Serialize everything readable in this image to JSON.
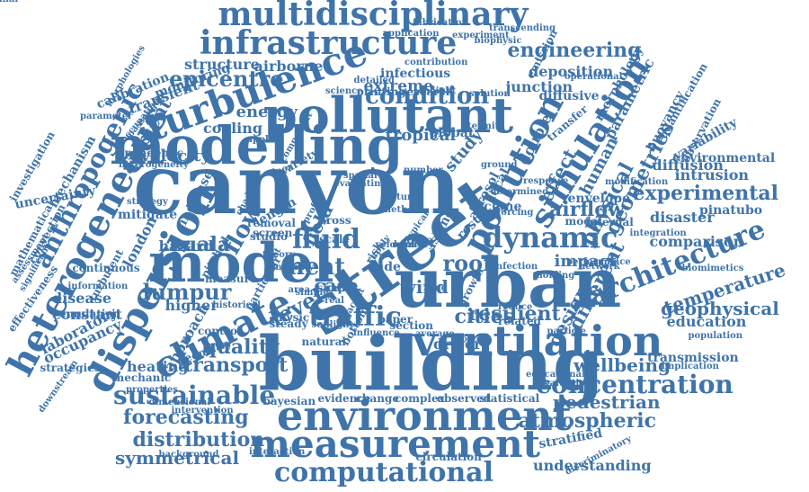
{
  "color": "#3f74aa",
  "words": [
    {
      "text": "canyon"
    },
    {
      "text": "street"
    },
    {
      "text": "building"
    },
    {
      "text": "urban"
    },
    {
      "text": "modelling"
    },
    {
      "text": "model"
    },
    {
      "text": "pollutant"
    },
    {
      "text": "environment"
    },
    {
      "text": "measurement"
    },
    {
      "text": "ventilation"
    },
    {
      "text": "computational"
    },
    {
      "text": "infrastructure"
    },
    {
      "text": "multidisciplinary"
    },
    {
      "text": "dispersion"
    },
    {
      "text": "heterogeneous"
    },
    {
      "text": "turbulence"
    },
    {
      "text": "climate"
    },
    {
      "text": "pollution"
    },
    {
      "text": "simulation"
    },
    {
      "text": "dynamic"
    },
    {
      "text": "concentration"
    },
    {
      "text": "sustainable"
    },
    {
      "text": "traffic"
    },
    {
      "text": "architecture"
    },
    {
      "text": "experimental"
    },
    {
      "text": "forecasting"
    },
    {
      "text": "distribution"
    },
    {
      "text": "atmospheric"
    },
    {
      "text": "engineering"
    },
    {
      "text": "condition"
    },
    {
      "text": "epicentre"
    },
    {
      "text": "anthropogenic"
    },
    {
      "text": "fluid"
    },
    {
      "text": "airflow"
    },
    {
      "text": "lumpur"
    },
    {
      "text": "kuala"
    },
    {
      "text": "quality"
    },
    {
      "text": "transport"
    },
    {
      "text": "temperature"
    },
    {
      "text": "geophysical"
    },
    {
      "text": "cities"
    },
    {
      "text": "resilient"
    },
    {
      "text": "geometries"
    },
    {
      "text": "physical"
    },
    {
      "text": "different"
    },
    {
      "text": "roof"
    },
    {
      "text": "heat"
    },
    {
      "text": "level"
    },
    {
      "text": "flow"
    },
    {
      "text": "wellbeing"
    },
    {
      "text": "symmetrical"
    },
    {
      "text": "pedestrian"
    },
    {
      "text": "understanding"
    },
    {
      "text": "extreme"
    },
    {
      "text": "airborne"
    },
    {
      "text": "structure"
    },
    {
      "text": "junction"
    },
    {
      "text": "deposition"
    },
    {
      "text": "energy"
    },
    {
      "text": "transient"
    },
    {
      "text": "ambient"
    },
    {
      "text": "cooling"
    },
    {
      "text": "velocity"
    },
    {
      "text": "tropical"
    },
    {
      "text": "study"
    },
    {
      "text": "double"
    },
    {
      "text": "effect"
    },
    {
      "text": "human"
    },
    {
      "text": "intrusion"
    },
    {
      "text": "diffusion"
    },
    {
      "text": "environmental"
    },
    {
      "text": "variability"
    },
    {
      "text": "buoyancy"
    },
    {
      "text": "parametric"
    },
    {
      "text": "pinatubo"
    },
    {
      "text": "disaster"
    },
    {
      "text": "comparison"
    },
    {
      "text": "education"
    },
    {
      "text": "design"
    },
    {
      "text": "impact"
    },
    {
      "text": "field"
    },
    {
      "text": "case"
    },
    {
      "text": "wind"
    },
    {
      "text": "london"
    },
    {
      "text": "hazard"
    },
    {
      "text": "laboratory"
    },
    {
      "text": "disease"
    },
    {
      "text": "constant"
    },
    {
      "text": "occupancy"
    },
    {
      "text": "heating"
    },
    {
      "text": "approach"
    },
    {
      "text": "higher"
    },
    {
      "text": "transmission"
    },
    {
      "text": "driver"
    },
    {
      "text": "infectious"
    },
    {
      "text": "calibration"
    },
    {
      "text": "monitoring"
    },
    {
      "text": "mechanism"
    },
    {
      "text": "uncertainty"
    },
    {
      "text": "investigation"
    },
    {
      "text": "convection"
    },
    {
      "text": "mathematical"
    },
    {
      "text": "turbulent"
    },
    {
      "text": "laminar"
    },
    {
      "text": "mitigate"
    },
    {
      "text": "increase"
    },
    {
      "text": "global"
    },
    {
      "text": "research"
    },
    {
      "text": "printing"
    },
    {
      "text": "science"
    },
    {
      "text": "detailed"
    },
    {
      "text": "fabrication"
    },
    {
      "text": "application"
    },
    {
      "text": "experiment"
    },
    {
      "text": "transcending"
    },
    {
      "text": "biophysic"
    },
    {
      "text": "emission"
    },
    {
      "text": "operational"
    },
    {
      "text": "morphology"
    },
    {
      "text": "quantification"
    },
    {
      "text": "observation"
    },
    {
      "text": "diffusive"
    },
    {
      "text": "transfer"
    },
    {
      "text": "island"
    },
    {
      "text": "result"
    },
    {
      "text": "aerosol"
    },
    {
      "text": "local"
    },
    {
      "text": "envelope"
    },
    {
      "text": "internal"
    },
    {
      "text": "modal"
    },
    {
      "text": "integration"
    },
    {
      "text": "population"
    },
    {
      "text": "implication"
    },
    {
      "text": "biomimetics"
    },
    {
      "text": "growth"
    },
    {
      "text": "related"
    },
    {
      "text": "reduce"
    },
    {
      "text": "particle"
    },
    {
      "text": "infection"
    },
    {
      "text": "holding"
    },
    {
      "text": "network"
    },
    {
      "text": "stratified"
    },
    {
      "text": "discriminatory"
    },
    {
      "text": "circulation"
    },
    {
      "text": "observed"
    },
    {
      "text": "statistical"
    },
    {
      "text": "complex"
    },
    {
      "text": "change"
    },
    {
      "text": "evidence"
    },
    {
      "text": "bayesian"
    },
    {
      "text": "natural"
    },
    {
      "text": "bottom"
    },
    {
      "text": "section"
    },
    {
      "text": "average"
    },
    {
      "text": "control"
    },
    {
      "text": "geometry"
    },
    {
      "text": "mechanic"
    },
    {
      "text": "properties"
    },
    {
      "text": "dimensional"
    },
    {
      "text": "intervention"
    },
    {
      "text": "background"
    },
    {
      "text": "interaction"
    },
    {
      "text": "strategies"
    },
    {
      "text": "downstream"
    },
    {
      "text": "emulation"
    },
    {
      "text": "information"
    },
    {
      "text": "continuous"
    },
    {
      "text": "effectiveness"
    },
    {
      "text": "assessment"
    },
    {
      "text": "significant"
    },
    {
      "text": "pandemic"
    },
    {
      "text": "heterogeneity"
    },
    {
      "text": "strategy"
    },
    {
      "text": "parameter"
    },
    {
      "text": "occupational"
    },
    {
      "text": "morphologies"
    },
    {
      "text": "passenger"
    },
    {
      "text": "removal"
    },
    {
      "text": "screen"
    },
    {
      "text": "length"
    },
    {
      "text": "measure"
    },
    {
      "text": "historical"
    },
    {
      "text": "particular"
    },
    {
      "text": "physic"
    },
    {
      "text": "steady"
    },
    {
      "text": "shape"
    },
    {
      "text": "simple"
    },
    {
      "text": "area"
    },
    {
      "text": "scale"
    },
    {
      "text": "side"
    },
    {
      "text": "risk"
    },
    {
      "text": "data"
    },
    {
      "text": "cross"
    },
    {
      "text": "paper"
    },
    {
      "text": "zone"
    },
    {
      "text": "cyclone"
    },
    {
      "text": "forcing"
    },
    {
      "text": "response"
    },
    {
      "text": "termite"
    },
    {
      "text": "ground"
    },
    {
      "text": "component"
    },
    {
      "text": "applied"
    },
    {
      "text": "pitched"
    },
    {
      "text": "theory"
    },
    {
      "text": "studio"
    },
    {
      "text": "chadwick"
    },
    {
      "text": "floor"
    },
    {
      "text": "variety"
    },
    {
      "text": "spatial"
    },
    {
      "text": "number"
    },
    {
      "text": "method"
    },
    {
      "text": "future"
    },
    {
      "text": "typical"
    },
    {
      "text": "profile"
    },
    {
      "text": "height"
    },
    {
      "text": "solution"
    },
    {
      "text": "contribution"
    },
    {
      "text": "educational"
    },
    {
      "text": "evaluation"
    },
    {
      "text": "modification"
    },
    {
      "text": "performance"
    },
    {
      "text": "determined"
    },
    {
      "text": "evaluating"
    },
    {
      "text": "influence"
    },
    {
      "text": "vortex"
    },
    {
      "text": "sunlight"
    },
    {
      "text": "adjacent"
    },
    {
      "text": "supply"
    },
    {
      "text": "mobility"
    },
    {
      "text": "event"
    },
    {
      "text": "real"
    },
    {
      "text": "lead"
    },
    {
      "text": "rural"
    },
    {
      "text": "velocimetry"
    }
  ]
}
